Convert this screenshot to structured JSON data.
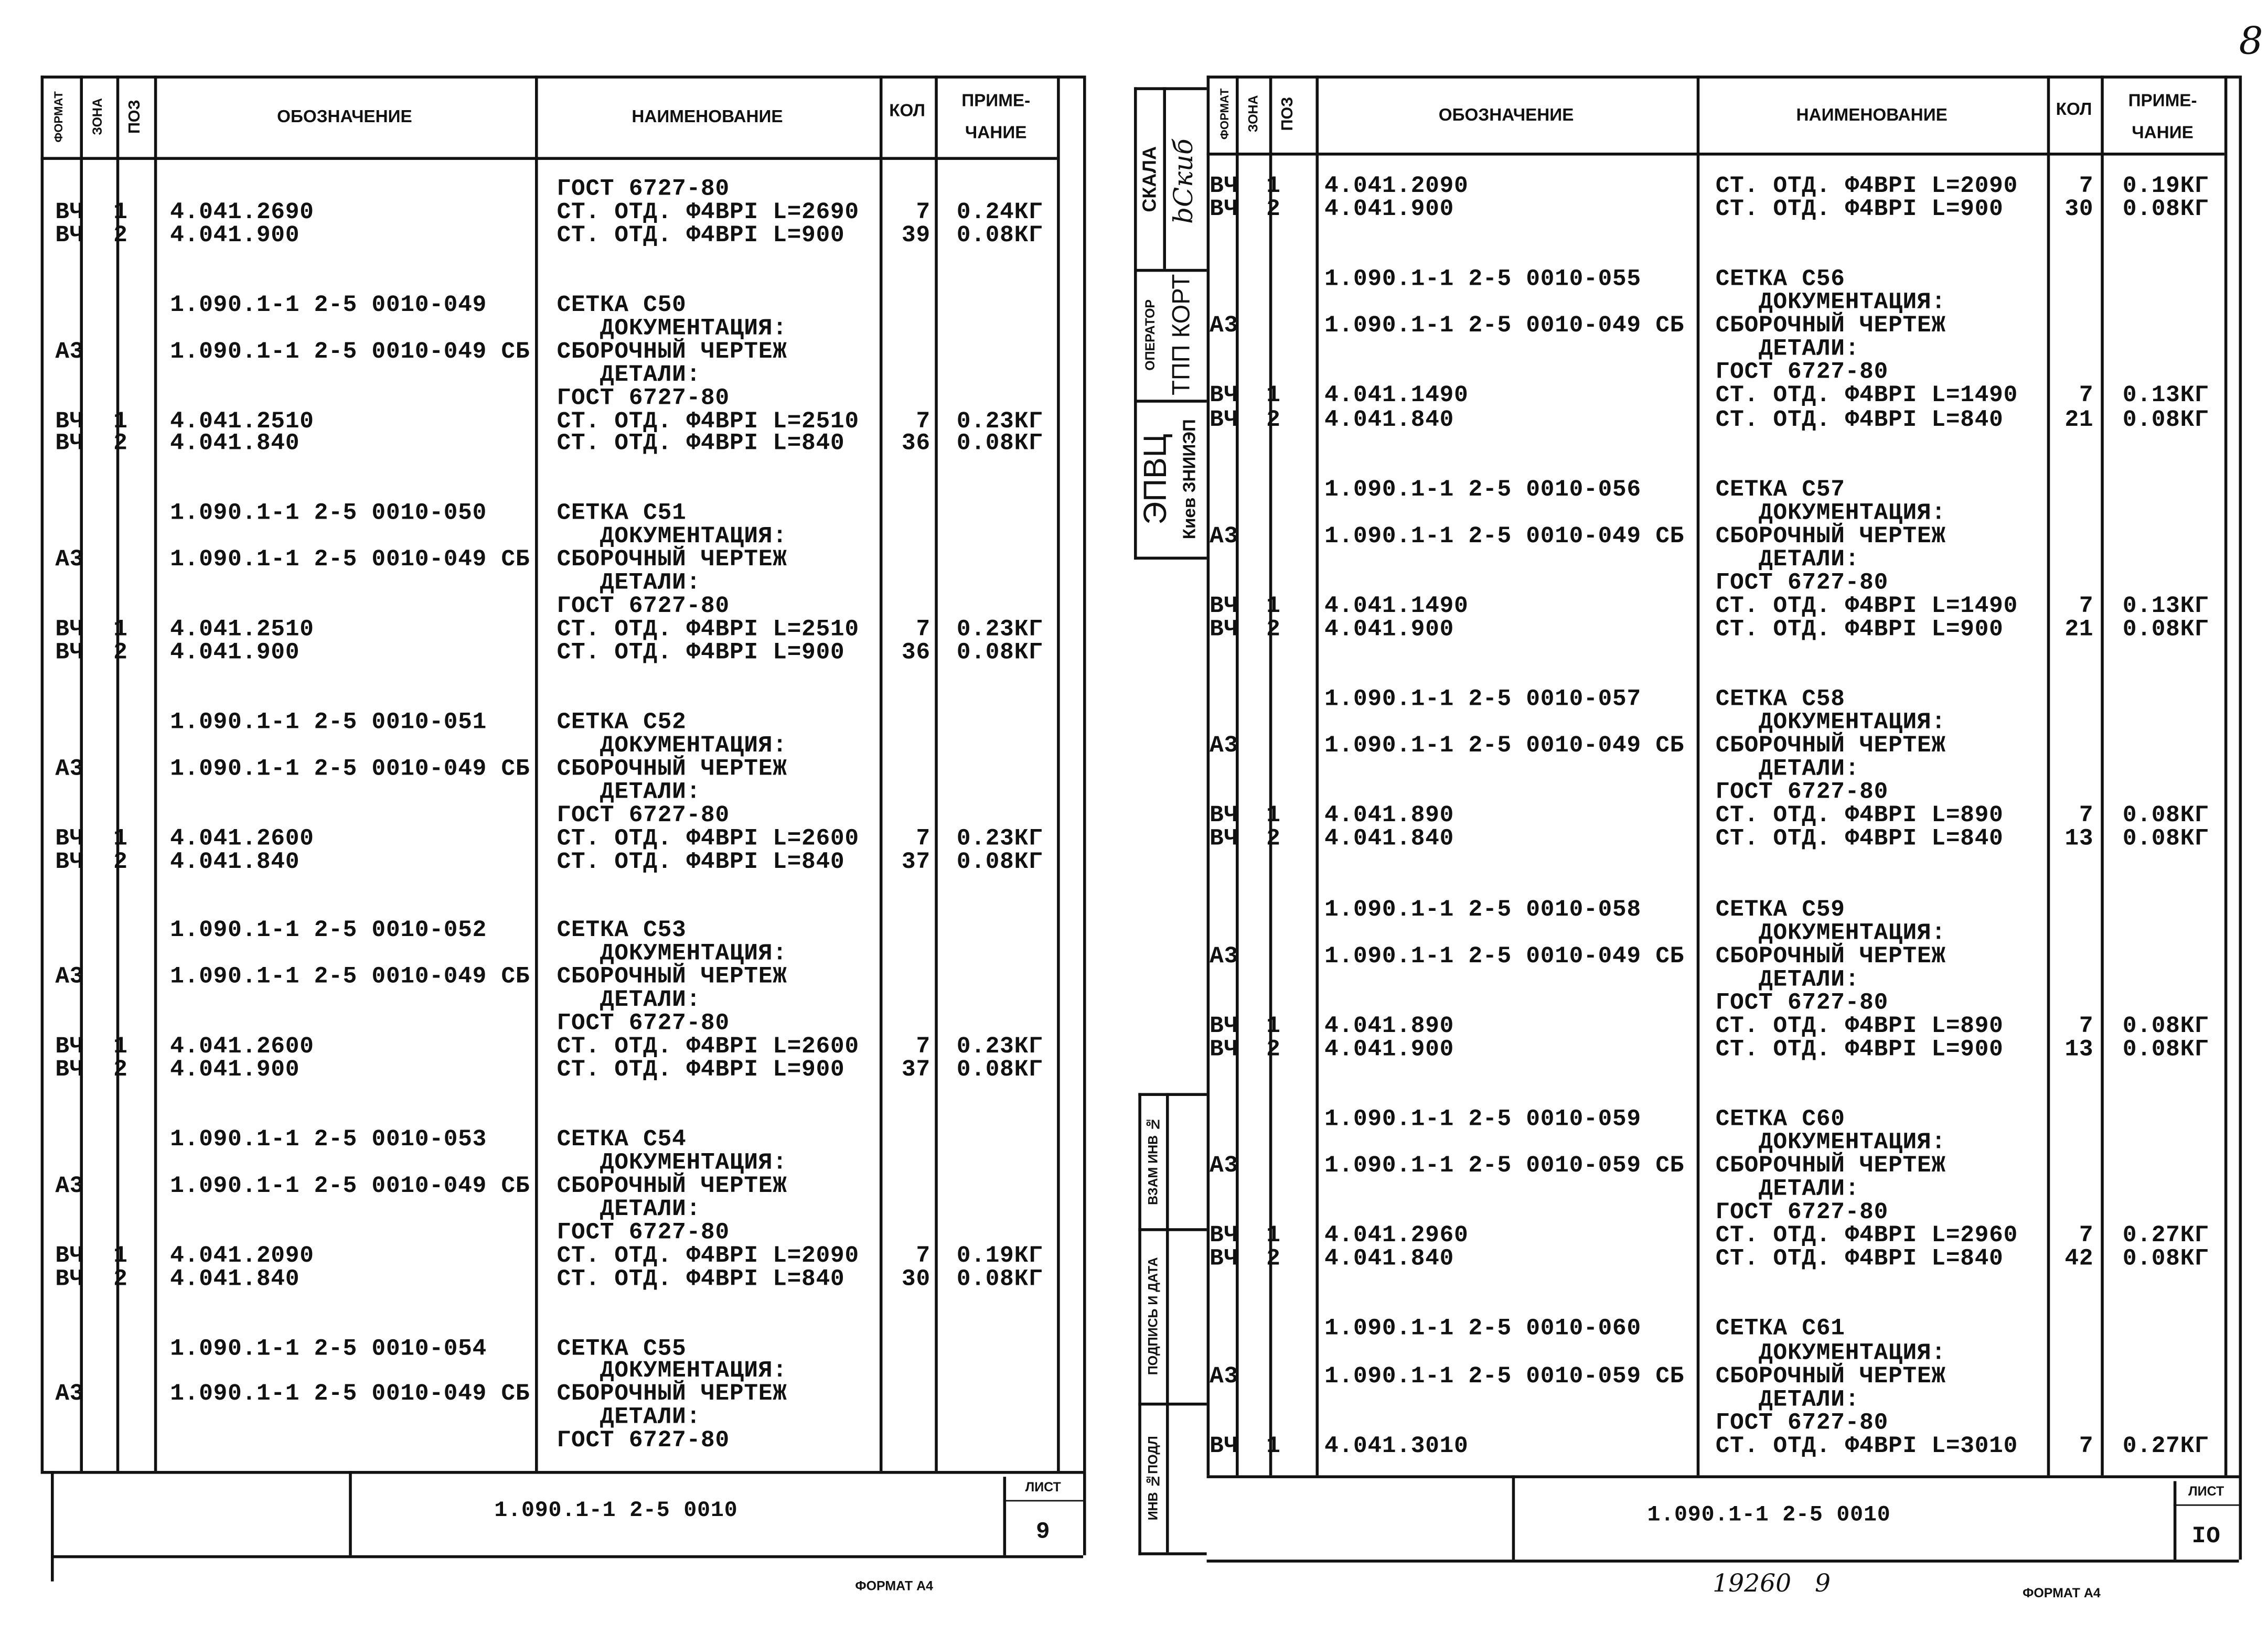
{
  "corner_number": "8",
  "header": {
    "format": "ФОРМАТ",
    "zone": "ЗОНА",
    "pos": "ПОЗ",
    "designation": "ОБОЗНАЧЕНИЕ",
    "name": "НАИМЕНОВАНИЕ",
    "qty": "КОЛ",
    "note": "ПРИМЕ-\nЧАНИЕ"
  },
  "stamp": {
    "skala": "СКАЛА",
    "signature": "bСкиб",
    "operator": "ОПЕРАТОР",
    "tpp": "ТПП КОРТ",
    "epvc": "ЭПВЦ",
    "kiev": "Киев ЗНИИЭП",
    "vzam": "ВЗАМ ИНВ №",
    "podpis": "ПОДПИСЬ И ДАТА",
    "inv": "ИНВ №ПОДЛ"
  },
  "pages": [
    {
      "doc_code": "1.090.1-1 2-5 0010",
      "sheet_label": "ЛИСТ",
      "sheet_number": "9",
      "format_label": "ФОРМАТ А4",
      "rows": [
        [
          "",
          "",
          "",
          "",
          "ГОСТ 6727-80",
          "",
          ""
        ],
        [
          "ВЧ",
          "1",
          "",
          "4.041.2690",
          "СТ. ОТД. Ф4ВРI L=2690",
          "7",
          "0.24КГ"
        ],
        [
          "ВЧ",
          "2",
          "",
          "4.041.900",
          "СТ. ОТД. Ф4ВРI L=900",
          "39",
          "0.08КГ"
        ],
        [],
        [],
        [
          "",
          "",
          "",
          "1.090.1-1 2-5 0010-049",
          "СЕТКА С50",
          "",
          ""
        ],
        [
          "",
          "",
          "",
          "",
          "   ДОКУМЕНТАЦИЯ:",
          "",
          ""
        ],
        [
          "А3",
          "",
          "",
          "1.090.1-1 2-5 0010-049 СБ",
          "СБОРОЧНЫЙ ЧЕРТЕЖ",
          "",
          ""
        ],
        [
          "",
          "",
          "",
          "",
          "   ДЕТАЛИ:",
          "",
          ""
        ],
        [
          "",
          "",
          "",
          "",
          "ГОСТ 6727-80",
          "",
          ""
        ],
        [
          "ВЧ",
          "1",
          "",
          "4.041.2510",
          "СТ. ОТД. Ф4ВРI L=2510",
          "7",
          "0.23КГ"
        ],
        [
          "ВЧ",
          "2",
          "",
          "4.041.840",
          "СТ. ОТД. Ф4ВРI L=840",
          "36",
          "0.08КГ"
        ],
        [],
        [],
        [
          "",
          "",
          "",
          "1.090.1-1 2-5 0010-050",
          "СЕТКА С51",
          "",
          ""
        ],
        [
          "",
          "",
          "",
          "",
          "   ДОКУМЕНТАЦИЯ:",
          "",
          ""
        ],
        [
          "А3",
          "",
          "",
          "1.090.1-1 2-5 0010-049 СБ",
          "СБОРОЧНЫЙ ЧЕРТЕЖ",
          "",
          ""
        ],
        [
          "",
          "",
          "",
          "",
          "   ДЕТАЛИ:",
          "",
          ""
        ],
        [
          "",
          "",
          "",
          "",
          "ГОСТ 6727-80",
          "",
          ""
        ],
        [
          "ВЧ",
          "1",
          "",
          "4.041.2510",
          "СТ. ОТД. Ф4ВРI L=2510",
          "7",
          "0.23КГ"
        ],
        [
          "ВЧ",
          "2",
          "",
          "4.041.900",
          "СТ. ОТД. Ф4ВРI L=900",
          "36",
          "0.08КГ"
        ],
        [],
        [],
        [
          "",
          "",
          "",
          "1.090.1-1 2-5 0010-051",
          "СЕТКА С52",
          "",
          ""
        ],
        [
          "",
          "",
          "",
          "",
          "   ДОКУМЕНТАЦИЯ:",
          "",
          ""
        ],
        [
          "А3",
          "",
          "",
          "1.090.1-1 2-5 0010-049 СБ",
          "СБОРОЧНЫЙ ЧЕРТЕЖ",
          "",
          ""
        ],
        [
          "",
          "",
          "",
          "",
          "   ДЕТАЛИ:",
          "",
          ""
        ],
        [
          "",
          "",
          "",
          "",
          "ГОСТ 6727-80",
          "",
          ""
        ],
        [
          "ВЧ",
          "1",
          "",
          "4.041.2600",
          "СТ. ОТД. Ф4ВРI L=2600",
          "7",
          "0.23КГ"
        ],
        [
          "ВЧ",
          "2",
          "",
          "4.041.840",
          "СТ. ОТД. Ф4ВРI L=840",
          "37",
          "0.08КГ"
        ],
        [],
        [],
        [
          "",
          "",
          "",
          "1.090.1-1 2-5 0010-052",
          "СЕТКА С53",
          "",
          ""
        ],
        [
          "",
          "",
          "",
          "",
          "   ДОКУМЕНТАЦИЯ:",
          "",
          ""
        ],
        [
          "А3",
          "",
          "",
          "1.090.1-1 2-5 0010-049 СБ",
          "СБОРОЧНЫЙ ЧЕРТЕЖ",
          "",
          ""
        ],
        [
          "",
          "",
          "",
          "",
          "   ДЕТАЛИ:",
          "",
          ""
        ],
        [
          "",
          "",
          "",
          "",
          "ГОСТ 6727-80",
          "",
          ""
        ],
        [
          "ВЧ",
          "1",
          "",
          "4.041.2600",
          "СТ. ОТД. Ф4ВРI L=2600",
          "7",
          "0.23КГ"
        ],
        [
          "ВЧ",
          "2",
          "",
          "4.041.900",
          "СТ. ОТД. Ф4ВРI L=900",
          "37",
          "0.08КГ"
        ],
        [],
        [],
        [
          "",
          "",
          "",
          "1.090.1-1 2-5 0010-053",
          "СЕТКА С54",
          "",
          ""
        ],
        [
          "",
          "",
          "",
          "",
          "   ДОКУМЕНТАЦИЯ:",
          "",
          ""
        ],
        [
          "А3",
          "",
          "",
          "1.090.1-1 2-5 0010-049 СБ",
          "СБОРОЧНЫЙ ЧЕРТЕЖ",
          "",
          ""
        ],
        [
          "",
          "",
          "",
          "",
          "   ДЕТАЛИ:",
          "",
          ""
        ],
        [
          "",
          "",
          "",
          "",
          "ГОСТ 6727-80",
          "",
          ""
        ],
        [
          "ВЧ",
          "1",
          "",
          "4.041.2090",
          "СТ. ОТД. Ф4ВРI L=2090",
          "7",
          "0.19КГ"
        ],
        [
          "ВЧ",
          "2",
          "",
          "4.041.840",
          "СТ. ОТД. Ф4ВРI L=840",
          "30",
          "0.08КГ"
        ],
        [],
        [],
        [
          "",
          "",
          "",
          "1.090.1-1 2-5 0010-054",
          "СЕТКА С55",
          "",
          ""
        ],
        [
          "",
          "",
          "",
          "",
          "   ДОКУМЕНТАЦИЯ:",
          "",
          ""
        ],
        [
          "А3",
          "",
          "",
          "1.090.1-1 2-5 0010-049 СБ",
          "СБОРОЧНЫЙ ЧЕРТЕЖ",
          "",
          ""
        ],
        [
          "",
          "",
          "",
          "",
          "   ДЕТАЛИ:",
          "",
          ""
        ],
        [
          "",
          "",
          "",
          "",
          "ГОСТ 6727-80",
          "",
          ""
        ]
      ]
    },
    {
      "doc_code": "1.090.1-1 2-5 0010",
      "sheet_label": "ЛИСТ",
      "sheet_number": "IO",
      "format_label": "ФОРМАТ А4",
      "handwritten_note": "19260   9",
      "rows": [
        [
          "ВЧ",
          "1",
          "",
          "4.041.2090",
          "СТ. ОТД. Ф4ВРI L=2090",
          "7",
          "0.19КГ"
        ],
        [
          "ВЧ",
          "2",
          "",
          "4.041.900",
          "СТ. ОТД. Ф4ВРI L=900",
          "30",
          "0.08КГ"
        ],
        [],
        [],
        [
          "",
          "",
          "",
          "1.090.1-1 2-5 0010-055",
          "СЕТКА С56",
          "",
          ""
        ],
        [
          "",
          "",
          "",
          "",
          "   ДОКУМЕНТАЦИЯ:",
          "",
          ""
        ],
        [
          "А3",
          "",
          "",
          "1.090.1-1 2-5 0010-049 СБ",
          "СБОРОЧНЫЙ ЧЕРТЕЖ",
          "",
          ""
        ],
        [
          "",
          "",
          "",
          "",
          "   ДЕТАЛИ:",
          "",
          ""
        ],
        [
          "",
          "",
          "",
          "",
          "ГОСТ 6727-80",
          "",
          ""
        ],
        [
          "ВЧ",
          "1",
          "",
          "4.041.1490",
          "СТ. ОТД. Ф4ВРI L=1490",
          "7",
          "0.13КГ"
        ],
        [
          "ВЧ",
          "2",
          "",
          "4.041.840",
          "СТ. ОТД. Ф4ВРI L=840",
          "21",
          "0.08КГ"
        ],
        [],
        [],
        [
          "",
          "",
          "",
          "1.090.1-1 2-5 0010-056",
          "СЕТКА С57",
          "",
          ""
        ],
        [
          "",
          "",
          "",
          "",
          "   ДОКУМЕНТАЦИЯ:",
          "",
          ""
        ],
        [
          "А3",
          "",
          "",
          "1.090.1-1 2-5 0010-049 СБ",
          "СБОРОЧНЫЙ ЧЕРТЕЖ",
          "",
          ""
        ],
        [
          "",
          "",
          "",
          "",
          "   ДЕТАЛИ:",
          "",
          ""
        ],
        [
          "",
          "",
          "",
          "",
          "ГОСТ 6727-80",
          "",
          ""
        ],
        [
          "ВЧ",
          "1",
          "",
          "4.041.1490",
          "СТ. ОТД. Ф4ВРI L=1490",
          "7",
          "0.13КГ"
        ],
        [
          "ВЧ",
          "2",
          "",
          "4.041.900",
          "СТ. ОТД. Ф4ВРI L=900",
          "21",
          "0.08КГ"
        ],
        [],
        [],
        [
          "",
          "",
          "",
          "1.090.1-1 2-5 0010-057",
          "СЕТКА С58",
          "",
          ""
        ],
        [
          "",
          "",
          "",
          "",
          "   ДОКУМЕНТАЦИЯ:",
          "",
          ""
        ],
        [
          "А3",
          "",
          "",
          "1.090.1-1 2-5 0010-049 СБ",
          "СБОРОЧНЫЙ ЧЕРТЕЖ",
          "",
          ""
        ],
        [
          "",
          "",
          "",
          "",
          "   ДЕТАЛИ:",
          "",
          ""
        ],
        [
          "",
          "",
          "",
          "",
          "ГОСТ 6727-80",
          "",
          ""
        ],
        [
          "ВЧ",
          "1",
          "",
          "4.041.890",
          "СТ. ОТД. Ф4ВРI L=890",
          "7",
          "0.08КГ"
        ],
        [
          "ВЧ",
          "2",
          "",
          "4.041.840",
          "СТ. ОТД. Ф4ВРI L=840",
          "13",
          "0.08КГ"
        ],
        [],
        [],
        [
          "",
          "",
          "",
          "1.090.1-1 2-5 0010-058",
          "СЕТКА С59",
          "",
          ""
        ],
        [
          "",
          "",
          "",
          "",
          "   ДОКУМЕНТАЦИЯ:",
          "",
          ""
        ],
        [
          "А3",
          "",
          "",
          "1.090.1-1 2-5 0010-049 СБ",
          "СБОРОЧНЫЙ ЧЕРТЕЖ",
          "",
          ""
        ],
        [
          "",
          "",
          "",
          "",
          "   ДЕТАЛИ:",
          "",
          ""
        ],
        [
          "",
          "",
          "",
          "",
          "ГОСТ 6727-80",
          "",
          ""
        ],
        [
          "ВЧ",
          "1",
          "",
          "4.041.890",
          "СТ. ОТД. Ф4ВРI L=890",
          "7",
          "0.08КГ"
        ],
        [
          "ВЧ",
          "2",
          "",
          "4.041.900",
          "СТ. ОТД. Ф4ВРI L=900",
          "13",
          "0.08КГ"
        ],
        [],
        [],
        [
          "",
          "",
          "",
          "1.090.1-1 2-5 0010-059",
          "СЕТКА С60",
          "",
          ""
        ],
        [
          "",
          "",
          "",
          "",
          "   ДОКУМЕНТАЦИЯ:",
          "",
          ""
        ],
        [
          "А3",
          "",
          "",
          "1.090.1-1 2-5 0010-059 СБ",
          "СБОРОЧНЫЙ ЧЕРТЕЖ",
          "",
          ""
        ],
        [
          "",
          "",
          "",
          "",
          "   ДЕТАЛИ:",
          "",
          ""
        ],
        [
          "",
          "",
          "",
          "",
          "ГОСТ 6727-80",
          "",
          ""
        ],
        [
          "ВЧ",
          "1",
          "",
          "4.041.2960",
          "СТ. ОТД. Ф4ВРI L=2960",
          "7",
          "0.27КГ"
        ],
        [
          "ВЧ",
          "2",
          "",
          "4.041.840",
          "СТ. ОТД. Ф4ВРI L=840",
          "42",
          "0.08КГ"
        ],
        [],
        [],
        [
          "",
          "",
          "",
          "1.090.1-1 2-5 0010-060",
          "СЕТКА С61",
          "",
          ""
        ],
        [
          "",
          "",
          "",
          "",
          "   ДОКУМЕНТАЦИЯ:",
          "",
          ""
        ],
        [
          "А3",
          "",
          "",
          "1.090.1-1 2-5 0010-059 СБ",
          "СБОРОЧНЫЙ ЧЕРТЕЖ",
          "",
          ""
        ],
        [
          "",
          "",
          "",
          "",
          "   ДЕТАЛИ:",
          "",
          ""
        ],
        [
          "",
          "",
          "",
          "",
          "ГОСТ 6727-80",
          "",
          ""
        ],
        [
          "ВЧ",
          "1",
          "",
          "4.041.3010",
          "СТ. ОТД. Ф4ВРI L=3010",
          "7",
          "0.27КГ"
        ]
      ]
    }
  ]
}
